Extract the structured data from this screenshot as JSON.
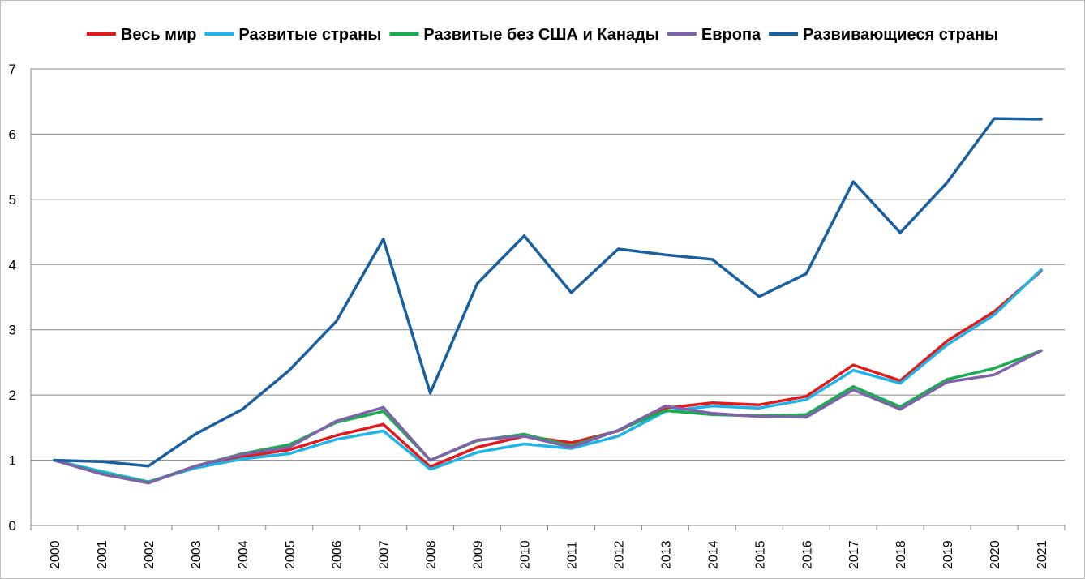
{
  "chart_data": {
    "type": "line",
    "title": "",
    "xlabel": "",
    "ylabel": "",
    "ylim": [
      0,
      7
    ],
    "yticks": [
      "0",
      "1",
      "2",
      "3",
      "4",
      "5",
      "6",
      "7"
    ],
    "grid": true,
    "legend_position": "top",
    "categories": [
      "2000",
      "2001",
      "2002",
      "2003",
      "2004",
      "2005",
      "2006",
      "2007",
      "2008",
      "2009",
      "2010",
      "2011",
      "2012",
      "2013",
      "2014",
      "2015",
      "2016",
      "2017",
      "2018",
      "2019",
      "2020",
      "2021"
    ],
    "series": [
      {
        "name": "Весь мир",
        "color": "#e31a1c",
        "values": [
          1.0,
          0.8,
          0.66,
          0.9,
          1.05,
          1.16,
          1.38,
          1.55,
          0.9,
          1.2,
          1.37,
          1.27,
          1.45,
          1.8,
          1.88,
          1.85,
          1.98,
          2.46,
          2.22,
          2.83,
          3.28,
          3.9
        ]
      },
      {
        "name": "Развитые страны",
        "color": "#1fb4e8",
        "values": [
          1.0,
          0.83,
          0.67,
          0.88,
          1.02,
          1.1,
          1.32,
          1.45,
          0.86,
          1.12,
          1.25,
          1.18,
          1.37,
          1.75,
          1.83,
          1.8,
          1.93,
          2.38,
          2.18,
          2.77,
          3.23,
          3.92
        ]
      },
      {
        "name": "Развитые без США и Канады",
        "color": "#1aac50",
        "values": [
          1.0,
          0.8,
          0.66,
          0.91,
          1.1,
          1.24,
          1.58,
          1.75,
          1.0,
          1.3,
          1.4,
          1.22,
          1.46,
          1.76,
          1.7,
          1.68,
          1.7,
          2.13,
          1.82,
          2.24,
          2.41,
          2.68
        ]
      },
      {
        "name": "Европа",
        "color": "#7f63a9",
        "values": [
          1.0,
          0.79,
          0.65,
          0.91,
          1.09,
          1.2,
          1.6,
          1.81,
          1.0,
          1.31,
          1.37,
          1.2,
          1.46,
          1.83,
          1.72,
          1.67,
          1.66,
          2.08,
          1.78,
          2.2,
          2.31,
          2.68
        ]
      },
      {
        "name": "Развивающиеся страны",
        "color": "#1a5fa0",
        "values": [
          1.0,
          0.98,
          0.91,
          1.4,
          1.78,
          2.38,
          3.13,
          4.39,
          2.03,
          3.71,
          4.44,
          3.57,
          4.24,
          4.15,
          4.08,
          3.51,
          3.86,
          5.27,
          4.49,
          5.26,
          6.24,
          6.23
        ]
      }
    ]
  }
}
